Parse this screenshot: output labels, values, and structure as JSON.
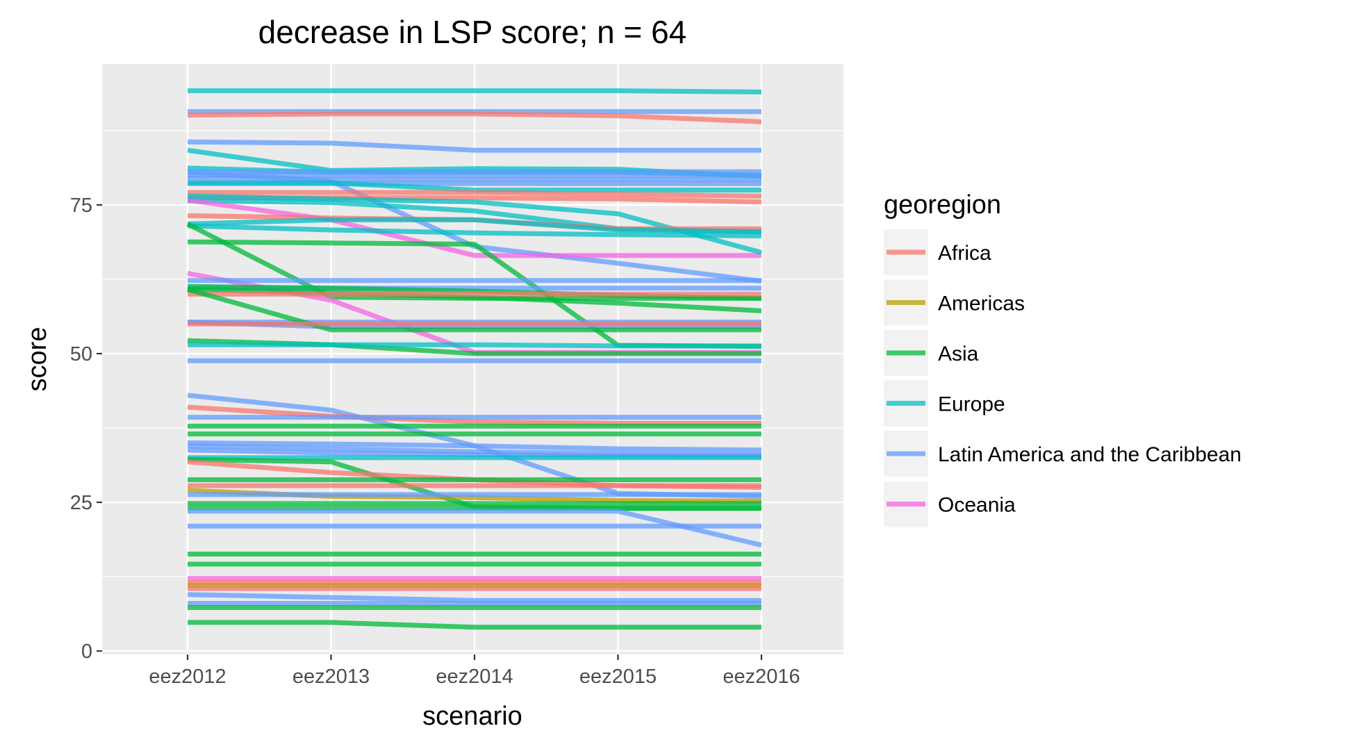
{
  "chart_data": {
    "type": "line",
    "title": "decrease in LSP score; n = 64",
    "xlabel": "scenario",
    "ylabel": "score",
    "categories": [
      "eez2012",
      "eez2013",
      "eez2014",
      "eez2015",
      "eez2016"
    ],
    "ylim": [
      0,
      95
    ],
    "yticks": [
      0,
      25,
      50,
      75
    ],
    "grid": true,
    "legend": {
      "title": "georegion",
      "position": "right",
      "entries": [
        {
          "label": "Africa",
          "color": "#F8766D"
        },
        {
          "label": "Americas",
          "color": "#B79F00"
        },
        {
          "label": "Asia",
          "color": "#00BA38"
        },
        {
          "label": "Europe",
          "color": "#00BFC4"
        },
        {
          "label": "Latin America and the Caribbean",
          "color": "#619CFF"
        },
        {
          "label": "Oceania",
          "color": "#F564E3"
        }
      ]
    },
    "series": [
      {
        "group": "Europe",
        "values": [
          94.2,
          94.2,
          94.2,
          94.2,
          94.0
        ]
      },
      {
        "group": "Latin America and the Caribbean",
        "values": [
          90.7,
          90.7,
          90.7,
          90.7,
          90.7
        ]
      },
      {
        "group": "Africa",
        "values": [
          90.1,
          90.3,
          90.3,
          90.0,
          89.0
        ]
      },
      {
        "group": "Latin America and the Caribbean",
        "values": [
          85.6,
          85.4,
          84.2,
          84.2,
          84.2
        ]
      },
      {
        "group": "Europe",
        "values": [
          84.2,
          80.8,
          81.1,
          81.0,
          79.8
        ]
      },
      {
        "group": "Europe",
        "values": [
          81.2,
          80.5,
          80.5,
          80.5,
          80.0
        ]
      },
      {
        "group": "Latin America and the Caribbean",
        "values": [
          80.6,
          80.6,
          80.6,
          80.6,
          80.6
        ]
      },
      {
        "group": "Latin America and the Caribbean",
        "values": [
          80.0,
          80.0,
          80.0,
          80.0,
          80.0
        ]
      },
      {
        "group": "Latin America and the Caribbean",
        "values": [
          79.5,
          79.3,
          79.3,
          79.3,
          79.3
        ]
      },
      {
        "group": "Latin America and the Caribbean",
        "values": [
          78.6,
          78.6,
          78.6,
          78.6,
          78.6
        ]
      },
      {
        "group": "Latin America and the Caribbean",
        "values": [
          80.5,
          79.0,
          68.0,
          65.2,
          62.2
        ]
      },
      {
        "group": "Europe",
        "values": [
          78.7,
          78.7,
          77.5,
          77.5,
          77.5
        ]
      },
      {
        "group": "Africa",
        "values": [
          77.1,
          77.1,
          77.1,
          76.8,
          76.5
        ]
      },
      {
        "group": "Africa",
        "values": [
          76.2,
          76.2,
          76.2,
          76.0,
          75.5
        ]
      },
      {
        "group": "Europe",
        "values": [
          75.7,
          75.4,
          74.0,
          71.0,
          70.5
        ]
      },
      {
        "group": "Oceania",
        "values": [
          75.8,
          72.5,
          66.5,
          66.5,
          66.5
        ]
      },
      {
        "group": "Europe",
        "values": [
          76.5,
          76.0,
          75.5,
          73.5,
          67.0
        ]
      },
      {
        "group": "Africa",
        "values": [
          73.2,
          72.8,
          72.5,
          71.0,
          71.0
        ]
      },
      {
        "group": "Europe",
        "values": [
          71.8,
          72.5,
          72.5,
          70.8,
          70.5
        ]
      },
      {
        "group": "Europe",
        "values": [
          71.5,
          70.8,
          70.3,
          70.0,
          69.8
        ]
      },
      {
        "group": "Asia",
        "values": [
          71.8,
          59.5,
          59.3,
          59.3,
          59.3
        ]
      },
      {
        "group": "Asia",
        "values": [
          68.8,
          68.6,
          68.4,
          51.4,
          51.2
        ]
      },
      {
        "group": "Oceania",
        "values": [
          63.5,
          59.0,
          50.2,
          50.2,
          50.2
        ]
      },
      {
        "group": "Latin America and the Caribbean",
        "values": [
          62.3,
          62.3,
          62.3,
          62.3,
          62.3
        ]
      },
      {
        "group": "Latin America and the Caribbean",
        "values": [
          61.0,
          61.0,
          61.0,
          61.0,
          61.0
        ]
      },
      {
        "group": "Asia",
        "values": [
          61.3,
          61.0,
          60.5,
          59.8,
          59.3
        ]
      },
      {
        "group": "Asia",
        "values": [
          60.8,
          60.2,
          59.5,
          58.5,
          57.2
        ]
      },
      {
        "group": "Africa",
        "values": [
          60.0,
          60.0,
          60.0,
          60.0,
          60.0
        ]
      },
      {
        "group": "Latin America and the Caribbean",
        "values": [
          55.3,
          55.3,
          55.3,
          55.3,
          55.3
        ]
      },
      {
        "group": "Latin America and the Caribbean",
        "values": [
          55.3,
          54.5,
          54.5,
          54.5,
          54.5
        ]
      },
      {
        "group": "Asia",
        "values": [
          60.8,
          54.0,
          54.0,
          54.0,
          54.0
        ]
      },
      {
        "group": "Africa",
        "values": [
          55.0,
          55.0,
          55.0,
          55.0,
          55.0
        ]
      },
      {
        "group": "Asia",
        "values": [
          52.2,
          51.5,
          50.0,
          50.0,
          50.0
        ]
      },
      {
        "group": "Europe",
        "values": [
          51.5,
          51.5,
          51.5,
          51.3,
          51.3
        ]
      },
      {
        "group": "Latin America and the Caribbean",
        "values": [
          48.8,
          48.8,
          48.8,
          48.8,
          48.8
        ]
      },
      {
        "group": "Latin America and the Caribbean",
        "values": [
          43.0,
          40.5,
          34.5,
          26.5,
          26.0
        ]
      },
      {
        "group": "Africa",
        "values": [
          41.0,
          39.5,
          38.5,
          38.3,
          38.3
        ]
      },
      {
        "group": "Latin America and the Caribbean",
        "values": [
          39.3,
          39.3,
          39.3,
          39.3,
          39.3
        ]
      },
      {
        "group": "Asia",
        "values": [
          37.8,
          37.8,
          37.8,
          37.8,
          37.8
        ]
      },
      {
        "group": "Asia",
        "values": [
          36.5,
          36.5,
          36.5,
          36.5,
          36.5
        ]
      },
      {
        "group": "Latin America and the Caribbean",
        "values": [
          35.0,
          34.8,
          34.5,
          34.0,
          33.8
        ]
      },
      {
        "group": "Latin America and the Caribbean",
        "values": [
          34.5,
          34.0,
          33.5,
          33.2,
          33.0
        ]
      },
      {
        "group": "Latin America and the Caribbean",
        "values": [
          33.8,
          33.3,
          33.0,
          32.8,
          32.8
        ]
      },
      {
        "group": "Europe",
        "values": [
          32.5,
          32.5,
          32.5,
          32.5,
          32.5
        ]
      },
      {
        "group": "Asia",
        "values": [
          32.2,
          31.8,
          24.2,
          24.0,
          24.0
        ]
      },
      {
        "group": "Africa",
        "values": [
          31.8,
          30.0,
          28.8,
          27.8,
          27.5
        ]
      },
      {
        "group": "Asia",
        "values": [
          28.8,
          28.8,
          28.8,
          28.8,
          28.8
        ]
      },
      {
        "group": "Africa",
        "values": [
          27.8,
          27.8,
          27.8,
          27.8,
          27.8
        ]
      },
      {
        "group": "Americas",
        "values": [
          27.0,
          26.0,
          25.8,
          25.3,
          25.2
        ]
      },
      {
        "group": "Latin America and the Caribbean",
        "values": [
          26.3,
          26.3,
          26.3,
          26.3,
          26.3
        ]
      },
      {
        "group": "Asia",
        "values": [
          24.8,
          24.8,
          24.8,
          24.8,
          24.8
        ]
      },
      {
        "group": "Asia",
        "values": [
          24.0,
          24.0,
          24.0,
          24.0,
          24.0
        ]
      },
      {
        "group": "Latin America and the Caribbean",
        "values": [
          23.5,
          23.5,
          23.5,
          23.5,
          17.8
        ]
      },
      {
        "group": "Latin America and the Caribbean",
        "values": [
          21.0,
          21.0,
          21.0,
          21.0,
          21.0
        ]
      },
      {
        "group": "Asia",
        "values": [
          16.3,
          16.3,
          16.3,
          16.3,
          16.3
        ]
      },
      {
        "group": "Asia",
        "values": [
          14.6,
          14.6,
          14.6,
          14.6,
          14.6
        ]
      },
      {
        "group": "Oceania",
        "values": [
          12.2,
          12.2,
          12.2,
          12.2,
          12.2
        ]
      },
      {
        "group": "Africa",
        "values": [
          11.5,
          11.5,
          11.5,
          11.5,
          11.5
        ]
      },
      {
        "group": "Americas",
        "values": [
          11.0,
          11.0,
          11.0,
          11.0,
          11.0
        ]
      },
      {
        "group": "Africa",
        "values": [
          10.5,
          10.5,
          10.5,
          10.5,
          10.5
        ]
      },
      {
        "group": "Latin America and the Caribbean",
        "values": [
          9.5,
          9.0,
          8.5,
          8.5,
          8.5
        ]
      },
      {
        "group": "Latin America and the Caribbean",
        "values": [
          8.0,
          8.0,
          8.0,
          8.0,
          8.0
        ]
      },
      {
        "group": "Asia",
        "values": [
          7.3,
          7.3,
          7.3,
          7.3,
          7.3
        ]
      },
      {
        "group": "Asia",
        "values": [
          4.8,
          4.8,
          4.0,
          4.0,
          4.0
        ]
      }
    ]
  }
}
